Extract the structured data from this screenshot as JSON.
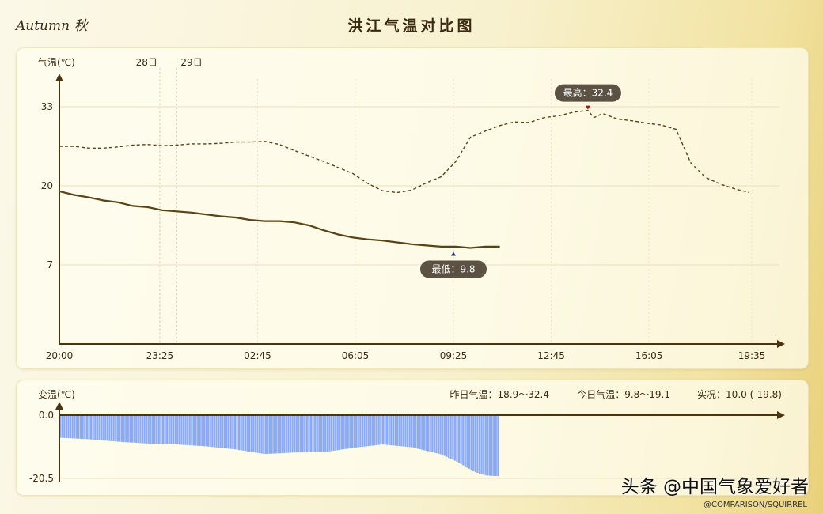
{
  "header": {
    "logo": "Autumn 秋",
    "title": "洪江气温对比图"
  },
  "chart_data": [
    {
      "type": "line",
      "ylabel": "气温(℃)",
      "ylim": [
        -5,
        40
      ],
      "yticks": [
        7,
        20,
        33
      ],
      "x_ticks": [
        "20:00",
        "23:25",
        "02:45",
        "06:05",
        "09:25",
        "12:45",
        "16:05",
        "19:35"
      ],
      "x_hours": [
        0,
        3.42,
        6.75,
        10.08,
        13.42,
        16.75,
        20.08,
        23.58
      ],
      "day_markers": [
        {
          "label": "28日",
          "hour": 3.42
        },
        {
          "label": "29日",
          "hour": 4.0
        }
      ],
      "series": [
        {
          "style": "dashed",
          "x": [
            0,
            0.5,
            1,
            1.5,
            2,
            2.5,
            3,
            3.5,
            4,
            4.5,
            5,
            5.5,
            6,
            6.5,
            7,
            7.5,
            8,
            8.5,
            9,
            9.5,
            10,
            10.5,
            11,
            11.5,
            12,
            12.5,
            13,
            13.5,
            14,
            14.5,
            15,
            15.5,
            16,
            16.5,
            17,
            17.5,
            18,
            18.2,
            18.5,
            19,
            19.5,
            20,
            20.5,
            21,
            21.5,
            22,
            22.5,
            23,
            23.5
          ],
          "values": [
            26.5,
            26.5,
            26.2,
            26.2,
            26.4,
            26.7,
            26.8,
            26.6,
            26.7,
            26.9,
            26.9,
            27.0,
            27.2,
            27.2,
            27.3,
            26.8,
            25.8,
            24.9,
            24.0,
            23.0,
            22.0,
            20.4,
            19.2,
            18.9,
            19.3,
            20.5,
            21.5,
            24.0,
            28.0,
            29.0,
            29.9,
            30.5,
            30.4,
            31.2,
            31.5,
            32.1,
            32.4,
            31.2,
            31.9,
            31.0,
            30.7,
            30.3,
            30.0,
            29.3,
            23.8,
            21.4,
            20.3,
            19.5,
            18.9
          ]
        },
        {
          "style": "solid",
          "x": [
            0,
            0.5,
            1,
            1.5,
            2,
            2.5,
            3,
            3.5,
            4,
            4.5,
            5,
            5.5,
            6,
            6.5,
            7,
            7.5,
            8,
            8.5,
            9,
            9.5,
            10,
            10.5,
            11,
            11.5,
            12,
            12.5,
            13,
            13.5,
            14,
            14.5,
            15
          ],
          "values": [
            19.1,
            18.5,
            18.1,
            17.6,
            17.3,
            16.7,
            16.5,
            16.0,
            15.8,
            15.6,
            15.3,
            15.0,
            14.8,
            14.4,
            14.2,
            14.2,
            14.0,
            13.5,
            12.7,
            12.0,
            11.5,
            11.2,
            11.0,
            10.7,
            10.4,
            10.2,
            10.0,
            10.0,
            9.8,
            10.0,
            10.0
          ]
        }
      ],
      "annotations": [
        {
          "label": "最高：32.4",
          "hour": 18.0,
          "value": 32.4,
          "marker_color": "#b01010"
        },
        {
          "label": "最低：9.8",
          "hour": 13.42,
          "value": 9.8,
          "marker_color": "#1e2d7a"
        }
      ],
      "line_color": "#5a4315"
    },
    {
      "type": "bar",
      "ylabel": "变温(℃)",
      "ylim": [
        -20.5,
        0
      ],
      "yticks": [
        "0.0",
        "-20.5"
      ],
      "bar_color": "#8aaaf6",
      "x": [
        0,
        1,
        2,
        3,
        4,
        5,
        6,
        7,
        8,
        9,
        10,
        11,
        12,
        13,
        13.5,
        14,
        14.3,
        14.6,
        15
      ],
      "values": [
        -7.3,
        -7.8,
        -8.6,
        -9.2,
        -9.5,
        -10.1,
        -11.1,
        -12.6,
        -12.1,
        -12.0,
        -10.6,
        -9.5,
        -10.4,
        -12.7,
        -14.9,
        -17.6,
        -19.0,
        -19.6,
        -19.8
      ],
      "summary": {
        "yesterday": "昨日气温：18.9～32.4",
        "today": "今日气温：9.8～19.1",
        "current": "实况：10.0 (-19.8)"
      }
    }
  ],
  "watermark": {
    "main": "头条 @中国气象爱好者",
    "sub": "@COMPARISON/SQUIRREL"
  }
}
